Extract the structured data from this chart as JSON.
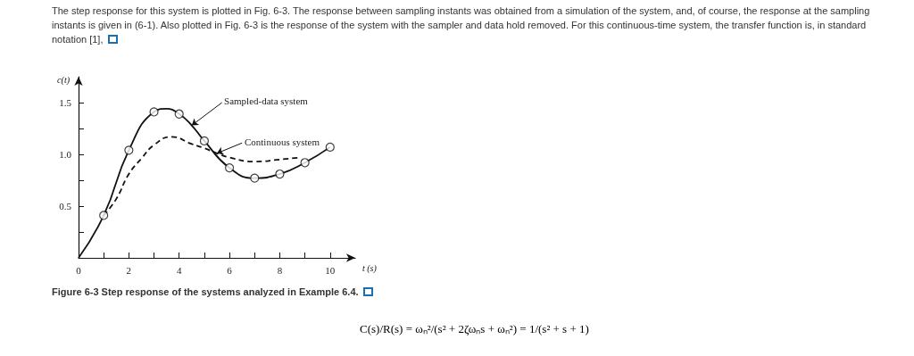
{
  "chart_data": {
    "type": "line",
    "title": "Figure 6-3 Step response of the systems analyzed in Example 6.4.",
    "xlabel": "t (s)",
    "ylabel": "c(t)",
    "xlim": [
      0,
      11
    ],
    "ylim": [
      0,
      1.75
    ],
    "xticks": [
      0,
      {
        "value": 1,
        "label": null
      },
      2,
      {
        "value": 3,
        "label": null
      },
      4,
      {
        "value": 5,
        "label": null
      },
      6,
      {
        "value": 7,
        "label": null
      },
      8,
      {
        "value": 9,
        "label": null
      },
      10
    ],
    "yticks": [
      {
        "value": 0.25,
        "label": null
      },
      0.5,
      {
        "value": 0.75,
        "label": null
      },
      {
        "value": 1,
        "label": "1.0"
      },
      {
        "value": 1.25,
        "label": null
      },
      1.5
    ],
    "grid": false,
    "series": [
      {
        "type": "line",
        "color": "#111111",
        "line_style": "solid",
        "marker": "none",
        "x": [
          0,
          1,
          2,
          3,
          3.5,
          4,
          4.5,
          5,
          6,
          7,
          8,
          9,
          10
        ],
        "values": [
          0,
          0.41,
          1.04,
          1.41,
          1.44,
          1.39,
          1.28,
          1.13,
          0.87,
          0.77,
          0.81,
          0.92,
          1.07
        ]
      },
      {
        "type": "scatter",
        "color": "#111111",
        "marker": "circle",
        "x": [
          1,
          2,
          3,
          4,
          5,
          6,
          7,
          8,
          9,
          10
        ],
        "values": [
          0.41,
          1.04,
          1.41,
          1.39,
          1.13,
          0.87,
          0.77,
          0.81,
          0.92,
          1.07
        ]
      },
      {
        "type": "line",
        "color": "#111111",
        "line_style": "dashed",
        "marker": "none",
        "x": [
          1,
          1.5,
          2,
          2.5,
          3,
          3.7,
          4.5,
          5,
          5.5,
          6,
          7,
          8,
          8.8
        ],
        "values": [
          0.41,
          0.57,
          0.81,
          0.96,
          1.09,
          1.17,
          1.1,
          1.06,
          1.01,
          0.97,
          0.93,
          0.95,
          0.97
        ]
      }
    ],
    "annotations": [
      "The step response for this system is plotted in Fig. 6-3. The response between sampling instants was obtained from a simulation of the system, and, of course, the response at the sampling instants is given in (6-1). Also plotted in Fig. 6-3 is the response of the system with the sampler and data hold removed. For this continuous-time system, the transfer function is, in standard notation [1],",
      {
        "text": "Sampled-data system",
        "x": 4.5,
        "y": 1.28
      },
      {
        "text": "Continuous system",
        "x": 5.5,
        "y": 1.01
      },
      "C(s)/R(s) = ωₙ²/(s² + 2ζωₙs + ωₙ²) = 1/(s² + s + 1)"
    ]
  }
}
